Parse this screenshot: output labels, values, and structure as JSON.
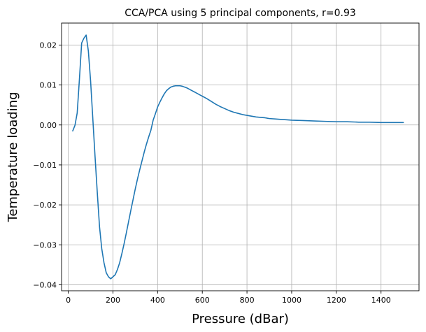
{
  "chart_data": {
    "type": "line",
    "title": "CCA/PCA using 5 principal components, r=0.93",
    "xlabel": "Pressure (dBar)",
    "ylabel": "Temperature loading",
    "xlim": [
      -30,
      1570
    ],
    "ylim": [
      -0.0415,
      0.0255
    ],
    "xticks": [
      0,
      200,
      400,
      600,
      800,
      1000,
      1200,
      1400
    ],
    "xtick_labels": [
      "0",
      "200",
      "400",
      "600",
      "800",
      "1000",
      "1200",
      "1400"
    ],
    "yticks": [
      -0.04,
      -0.03,
      -0.02,
      -0.01,
      0.0,
      0.01,
      0.02
    ],
    "ytick_labels": [
      "−0.04",
      "−0.03",
      "−0.02",
      "−0.01",
      "0.00",
      "0.01",
      "0.02"
    ],
    "grid": true,
    "series": [
      {
        "color": "#1f77b4",
        "x": [
          20,
          30,
          40,
          50,
          60,
          70,
          80,
          90,
          100,
          110,
          120,
          130,
          140,
          150,
          160,
          170,
          180,
          190,
          200,
          210,
          220,
          230,
          240,
          250,
          260,
          270,
          280,
          290,
          300,
          310,
          320,
          330,
          340,
          350,
          360,
          370,
          380,
          390,
          400,
          410,
          420,
          430,
          440,
          450,
          460,
          470,
          480,
          490,
          500,
          510,
          520,
          530,
          540,
          550,
          560,
          570,
          580,
          590,
          600,
          620,
          640,
          660,
          680,
          700,
          720,
          740,
          760,
          780,
          800,
          820,
          840,
          860,
          880,
          900,
          925,
          950,
          975,
          1000,
          1050,
          1100,
          1150,
          1200,
          1250,
          1300,
          1350,
          1400,
          1450,
          1500
        ],
        "y": [
          -0.0015,
          -0.0001,
          0.003,
          0.0115,
          0.0205,
          0.0217,
          0.0225,
          0.0185,
          0.011,
          0.0015,
          -0.008,
          -0.017,
          -0.0255,
          -0.031,
          -0.0345,
          -0.037,
          -0.038,
          -0.0385,
          -0.038,
          -0.0375,
          -0.0362,
          -0.0345,
          -0.0322,
          -0.0297,
          -0.027,
          -0.0242,
          -0.0214,
          -0.0187,
          -0.016,
          -0.0135,
          -0.0112,
          -0.009,
          -0.0068,
          -0.0048,
          -0.003,
          -0.0013,
          0.0012,
          0.0028,
          0.0045,
          0.0057,
          0.0068,
          0.0078,
          0.0086,
          0.0091,
          0.0095,
          0.0097,
          0.0098,
          0.0098,
          0.0098,
          0.0097,
          0.0095,
          0.0093,
          0.009,
          0.0087,
          0.0084,
          0.0081,
          0.0078,
          0.0075,
          0.0072,
          0.0066,
          0.0059,
          0.0052,
          0.0046,
          0.0041,
          0.0036,
          0.0032,
          0.0029,
          0.0026,
          0.0024,
          0.0022,
          0.002,
          0.0019,
          0.0018,
          0.0016,
          0.0015,
          0.0014,
          0.0013,
          0.0012,
          0.0011,
          0.001,
          0.0009,
          0.0008,
          0.0008,
          0.0007,
          0.0007,
          0.0006,
          0.0006,
          0.0006
        ]
      }
    ]
  }
}
